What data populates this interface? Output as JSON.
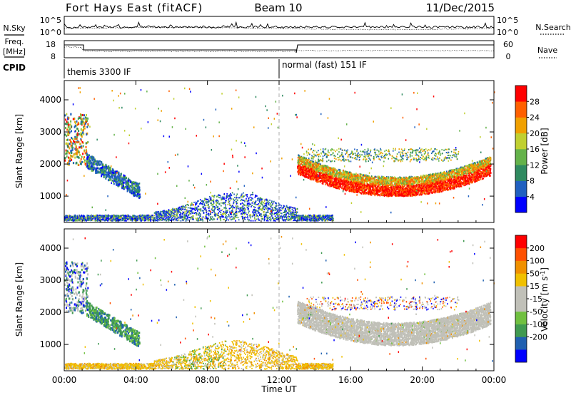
{
  "header": {
    "station": "Fort Hays East (fitACF)",
    "beam": "Beam 10",
    "date": "11/Dec/2015"
  },
  "noise_panel": {
    "left_label": "N.Sky",
    "right_label": "N.Search",
    "ticks_left": [
      "10^5",
      "10^0"
    ],
    "ticks_right": [
      "10^5",
      "10^0"
    ]
  },
  "freq_panel": {
    "left_label_1": "Freq.",
    "left_label_2": "[MHz]",
    "left_ticks": [
      "18",
      "8"
    ],
    "right_ticks": [
      "60",
      "0"
    ],
    "right_label": "Nave"
  },
  "cpid_panel": {
    "label": "CPID",
    "modes": [
      "themis 3300 IF",
      "normal (fast) 151 IF"
    ]
  },
  "colors": {
    "power_scale": [
      "#0000ff",
      "#2060c0",
      "#2f8a60",
      "#64b24a",
      "#c0d030",
      "#f0a000",
      "#ff6000",
      "#ff0000"
    ],
    "velocity_scale": [
      "#0000ff",
      "#2060b0",
      "#409a50",
      "#70c040",
      "#c0c0b8",
      "#c0c0b8",
      "#f0c000",
      "#f09000",
      "#ff5000",
      "#ff0000"
    ]
  },
  "chart_data": [
    {
      "type": "heatmap",
      "name": "power",
      "ylabel": "Slant Range [km]",
      "x_ticks": [
        "00:00",
        "04:00",
        "08:00",
        "12:00",
        "16:00",
        "20:00",
        "00:00"
      ],
      "xlim_hours": [
        0,
        24
      ],
      "y_ticks": [
        1000,
        2000,
        3000,
        4000
      ],
      "ylim_km": [
        180,
        4600
      ],
      "colorbar_label": "Power [dB]",
      "colorbar_ticks": [
        "28",
        "24",
        "20",
        "16",
        "12",
        "8",
        "4"
      ],
      "clim": [
        0,
        32
      ]
    },
    {
      "type": "heatmap",
      "name": "velocity",
      "ylabel": "Slant Range [km]",
      "xlabel": "Time UT",
      "x_ticks": [
        "00:00",
        "04:00",
        "08:00",
        "12:00",
        "16:00",
        "20:00",
        "00:00"
      ],
      "xlim_hours": [
        0,
        24
      ],
      "y_ticks": [
        1000,
        2000,
        3000,
        4000
      ],
      "ylim_km": [
        180,
        4600
      ],
      "colorbar_label": "Velocity [m s^-1]",
      "colorbar_ticks": [
        "200",
        "100",
        "50",
        "15",
        "-15",
        "-50",
        "-100",
        "-200"
      ]
    }
  ]
}
